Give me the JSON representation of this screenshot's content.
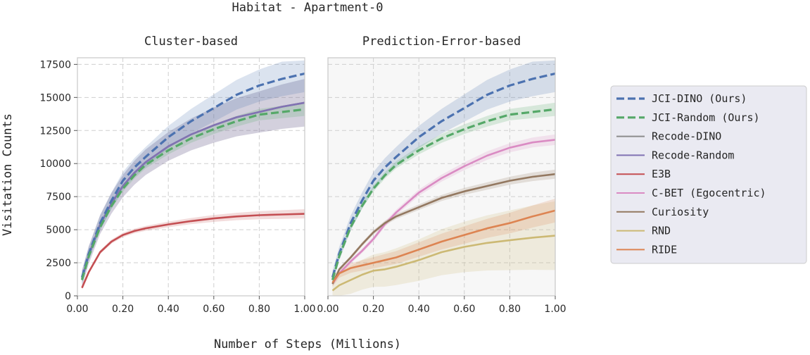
{
  "figure": {
    "suptitle": "Habitat - Apartment-0",
    "xlabel": "Number of Steps (Millions)",
    "ylabel": "Visitation Counts"
  },
  "colors": {
    "JCI-DINO (Ours)": "#4c72b0",
    "JCI-Random (Ours)": "#55a868",
    "Recode-DINO": "#8c8c8c",
    "Recode-Random": "#8172b3",
    "E3B": "#c44e52",
    "C-BET (Egocentric)": "#da8bc3",
    "Curiosity": "#937860",
    "RND": "#ccb974",
    "RIDE": "#dd8452"
  },
  "legend": {
    "placement": "right",
    "entries": [
      {
        "label": "JCI-DINO (Ours)",
        "dashed": true
      },
      {
        "label": "JCI-Random (Ours)",
        "dashed": true
      },
      {
        "label": "Recode-DINO",
        "dashed": false
      },
      {
        "label": "Recode-Random",
        "dashed": false
      },
      {
        "label": "E3B",
        "dashed": false
      },
      {
        "label": "C-BET (Egocentric)",
        "dashed": false
      },
      {
        "label": "Curiosity",
        "dashed": false
      },
      {
        "label": "RND",
        "dashed": false
      },
      {
        "label": "RIDE",
        "dashed": false
      }
    ]
  },
  "chart_data": [
    {
      "type": "line",
      "title": "Cluster-based",
      "xlim": [
        0,
        1
      ],
      "ylim": [
        0,
        18000
      ],
      "xticks": [
        "0.00",
        "0.20",
        "0.40",
        "0.60",
        "0.80",
        "1.00"
      ],
      "yticks": [
        "0",
        "2500",
        "5000",
        "7500",
        "10000",
        "12500",
        "15000",
        "17500"
      ],
      "grid": true,
      "x": [
        0.02,
        0.05,
        0.1,
        0.15,
        0.2,
        0.25,
        0.3,
        0.4,
        0.5,
        0.6,
        0.7,
        0.8,
        0.9,
        1.0
      ],
      "series": [
        {
          "name": "JCI-DINO (Ours)",
          "dashed": true,
          "values": [
            1400,
            3200,
            5500,
            7200,
            8700,
            9700,
            10500,
            12000,
            13200,
            14200,
            15200,
            15900,
            16400,
            16800
          ],
          "band": 1400
        },
        {
          "name": "JCI-Random (Ours)",
          "dashed": true,
          "values": [
            1200,
            3000,
            5200,
            6800,
            8100,
            9100,
            9900,
            11000,
            11900,
            12600,
            13200,
            13700,
            13900,
            14100
          ],
          "band": 500
        },
        {
          "name": "Recode-DINO",
          "dashed": false,
          "values": [
            1300,
            3100,
            5400,
            7000,
            8300,
            9300,
            10100,
            11300,
            12200,
            12900,
            13500,
            13900,
            14300,
            14600
          ],
          "band": 1800
        },
        {
          "name": "Recode-Random",
          "dashed": false,
          "values": [
            1300,
            3100,
            5400,
            7000,
            8300,
            9300,
            10100,
            11300,
            12200,
            12900,
            13500,
            13900,
            14300,
            14600
          ],
          "band": 1800
        },
        {
          "name": "E3B",
          "dashed": false,
          "values": [
            600,
            1800,
            3300,
            4100,
            4600,
            4900,
            5100,
            5400,
            5650,
            5850,
            6000,
            6100,
            6150,
            6200
          ],
          "band": 350
        }
      ]
    },
    {
      "type": "line",
      "title": "Prediction-Error-based",
      "xlim": [
        0,
        1
      ],
      "ylim": [
        0,
        18000
      ],
      "xticks": [
        "0.00",
        "0.20",
        "0.40",
        "0.60",
        "0.80",
        "1.00"
      ],
      "yticks": [],
      "grid": true,
      "x": [
        0.02,
        0.05,
        0.1,
        0.15,
        0.2,
        0.25,
        0.3,
        0.4,
        0.5,
        0.6,
        0.7,
        0.8,
        0.9,
        1.0
      ],
      "series": [
        {
          "name": "JCI-DINO (Ours)",
          "dashed": true,
          "values": [
            1400,
            3200,
            5500,
            7200,
            8700,
            9700,
            10500,
            12000,
            13200,
            14200,
            15200,
            15900,
            16400,
            16800
          ],
          "band": 1400
        },
        {
          "name": "JCI-Random (Ours)",
          "dashed": true,
          "values": [
            1200,
            3000,
            5200,
            6800,
            8100,
            9100,
            9900,
            11000,
            11900,
            12600,
            13200,
            13700,
            13900,
            14100
          ],
          "band": 500
        },
        {
          "name": "C-BET (Egocentric)",
          "dashed": false,
          "values": [
            900,
            1700,
            2600,
            3400,
            4300,
            5400,
            6300,
            7800,
            8900,
            9800,
            10600,
            11200,
            11600,
            11800
          ],
          "band": 400
        },
        {
          "name": "Curiosity",
          "dashed": false,
          "values": [
            900,
            2000,
            2900,
            3900,
            4800,
            5500,
            6000,
            6700,
            7400,
            7900,
            8300,
            8700,
            9000,
            9200
          ],
          "band": 350
        },
        {
          "name": "RND",
          "dashed": false,
          "values": [
            400,
            800,
            1200,
            1600,
            1900,
            2000,
            2200,
            2700,
            3300,
            3700,
            4000,
            4200,
            4400,
            4550
          ],
          "band": 2600
        },
        {
          "name": "RIDE",
          "dashed": false,
          "values": [
            1000,
            1700,
            2100,
            2300,
            2500,
            2700,
            2900,
            3500,
            4100,
            4600,
            5100,
            5500,
            6000,
            6450
          ],
          "band": 900
        }
      ]
    }
  ]
}
